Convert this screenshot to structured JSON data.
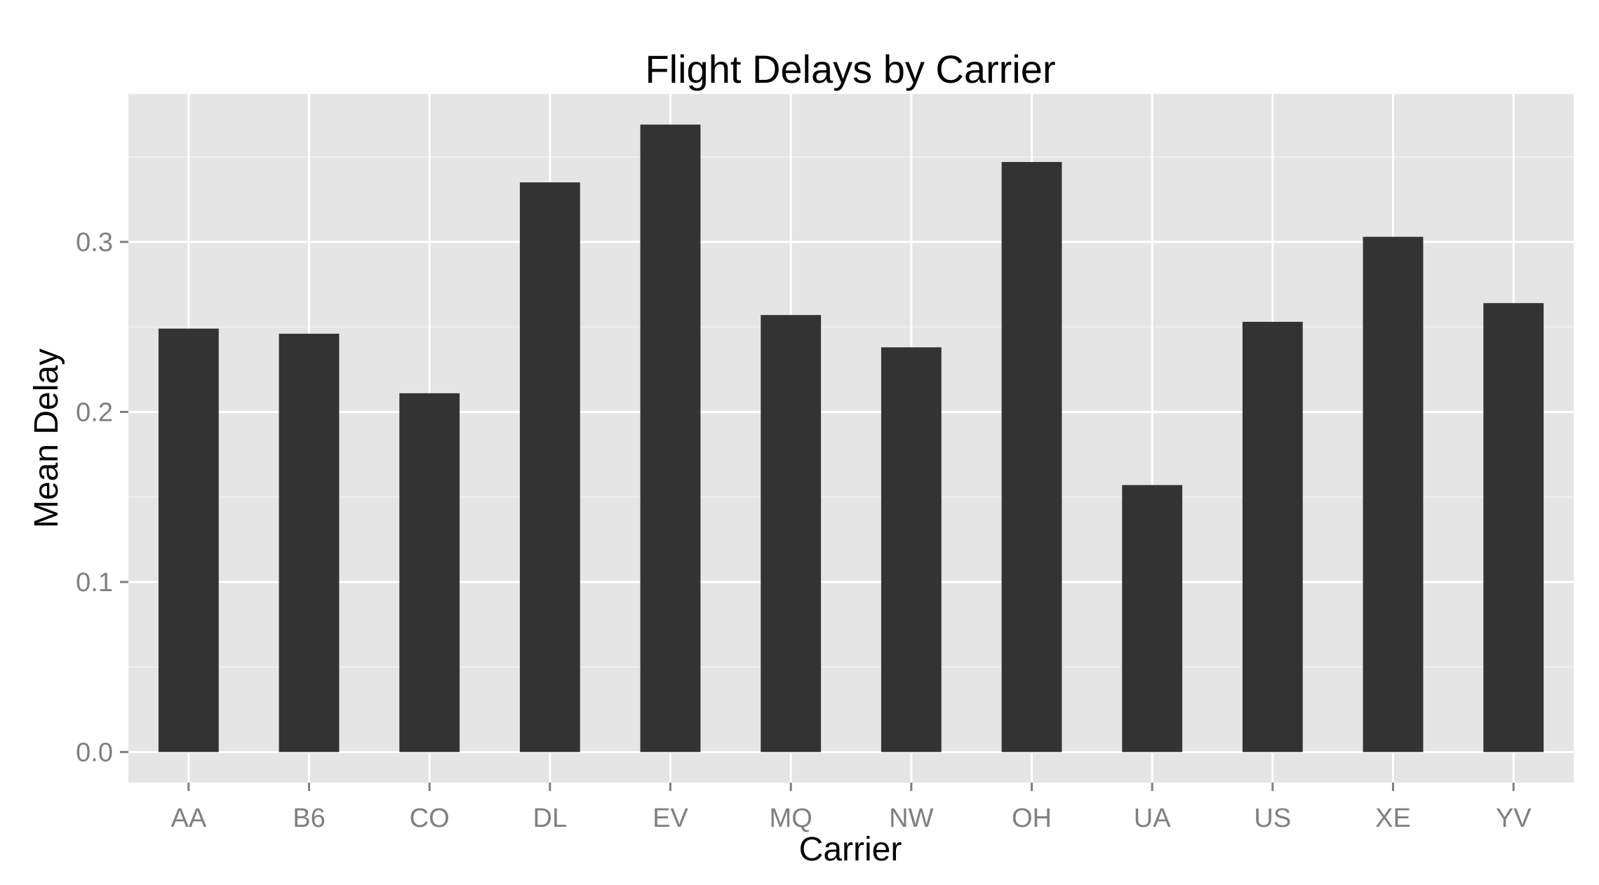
{
  "chart_data": {
    "type": "bar",
    "title": "Flight Delays by Carrier",
    "xlabel": "Carrier",
    "ylabel": "Mean Delay",
    "categories": [
      "AA",
      "B6",
      "CO",
      "DL",
      "EV",
      "MQ",
      "NW",
      "OH",
      "UA",
      "US",
      "XE",
      "YV"
    ],
    "values": [
      0.249,
      0.246,
      0.211,
      0.335,
      0.369,
      0.257,
      0.238,
      0.347,
      0.157,
      0.253,
      0.303,
      0.264
    ],
    "yticks": [
      0.0,
      0.1,
      0.2,
      0.3
    ],
    "ytick_labels": [
      "0.0",
      "0.1",
      "0.2",
      "0.3"
    ],
    "ylim": [
      -0.018,
      0.387
    ],
    "grid": true,
    "legend": "none",
    "colors": {
      "bar": "#333333",
      "panel": "#e5e5e5",
      "grid_major": "#ffffff",
      "grid_minor": "#f2f2f2",
      "tick_text": "#7f7f7f",
      "tick_mark": "#7f7f7f"
    }
  }
}
